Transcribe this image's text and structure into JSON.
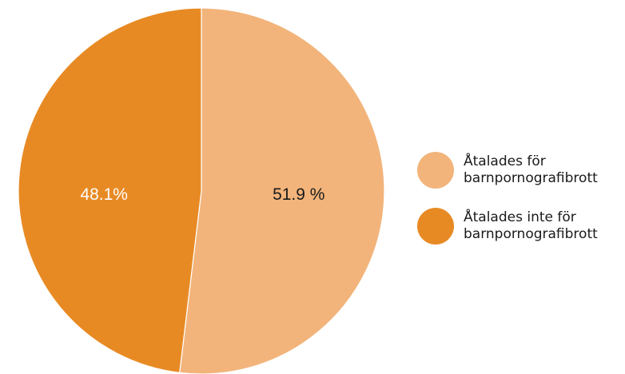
{
  "chart_data": {
    "type": "pie",
    "title": "",
    "slices": [
      {
        "label_line1": "Åtalades för",
        "label_line2": "barnpornografibrott",
        "value": 51.9,
        "value_label": "51.9 %",
        "color": "#f2b47b",
        "label_color": "#1a1a1a"
      },
      {
        "label_line1": "Åtalades inte för",
        "label_line2": "barnpornografibrott",
        "value": 48.1,
        "value_label": "48.1%",
        "color": "#e88a24",
        "label_color": "#ffffff"
      }
    ],
    "legend_position": "right"
  }
}
